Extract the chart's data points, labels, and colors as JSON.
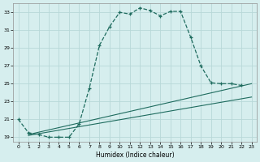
{
  "title": "",
  "xlabel": "Humidex (Indice chaleur)",
  "bg_color": "#d6eeee",
  "grid_color": "#b8d8d8",
  "line_color": "#1e6b5e",
  "xlim": [
    -0.5,
    23.5
  ],
  "ylim": [
    18.5,
    34.0
  ],
  "xticks": [
    0,
    1,
    2,
    3,
    4,
    5,
    6,
    7,
    8,
    9,
    10,
    11,
    12,
    13,
    14,
    15,
    16,
    17,
    18,
    19,
    20,
    21,
    22,
    23
  ],
  "yticks": [
    19,
    21,
    23,
    25,
    27,
    29,
    31,
    33
  ],
  "curve1_x": [
    0,
    1,
    2,
    3,
    4,
    5,
    6,
    7,
    8,
    9,
    10,
    11,
    12,
    13,
    14,
    15,
    16,
    17,
    18,
    19,
    20,
    21,
    22
  ],
  "curve1_y": [
    21.0,
    19.5,
    19.3,
    19.0,
    19.0,
    19.0,
    20.5,
    24.5,
    29.3,
    31.4,
    33.0,
    32.8,
    33.5,
    33.2,
    32.6,
    33.1,
    33.1,
    30.2,
    27.0,
    25.1,
    25.0,
    25.0,
    24.8
  ],
  "curve2_x": [
    1,
    23
  ],
  "curve2_y": [
    19.3,
    25.0
  ],
  "curve3_x": [
    1,
    23
  ],
  "curve3_y": [
    19.2,
    23.5
  ],
  "marker_x": [
    0,
    1,
    2,
    3,
    4,
    5,
    6,
    7,
    8,
    9,
    10,
    11,
    12,
    13,
    14,
    15,
    16,
    17,
    18,
    19,
    20,
    21,
    22
  ],
  "marker_y": [
    21.0,
    19.5,
    19.3,
    19.0,
    19.0,
    19.0,
    20.5,
    24.5,
    29.3,
    31.4,
    33.0,
    32.8,
    33.5,
    33.2,
    32.6,
    33.1,
    33.1,
    30.2,
    27.0,
    25.1,
    25.0,
    25.0,
    24.8
  ]
}
